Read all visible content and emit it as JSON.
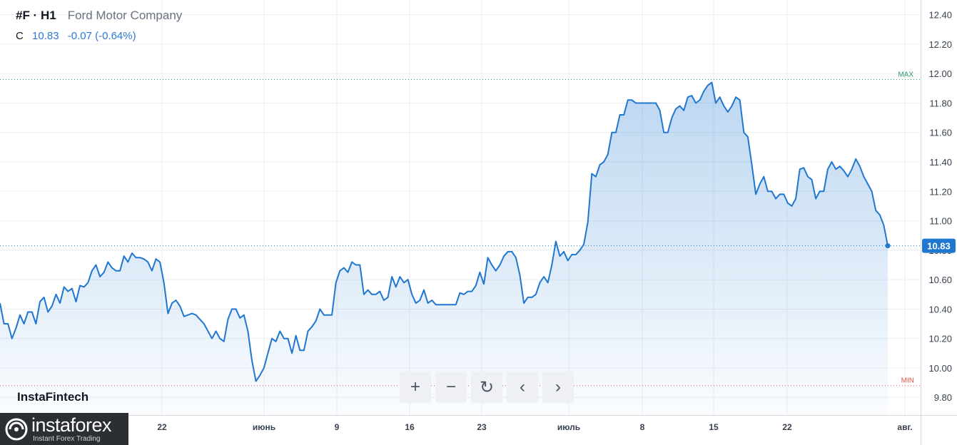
{
  "header": {
    "symbol": "#F · H1",
    "company": "Ford Motor Company",
    "close_label": "C",
    "close_value": "10.83",
    "change": "-0.07 (-0.64%)"
  },
  "controls": {
    "zoom_in": "+",
    "zoom_out": "−",
    "reset": "↻",
    "back": "‹",
    "forward": "›"
  },
  "brand": "InstaFintech",
  "instaforex": {
    "name": "instaforex",
    "tagline": "Instant Forex Trading"
  },
  "colors": {
    "line": "#1f77d0",
    "max": "#26a269",
    "min": "#e5534b",
    "badge": "#1f77d0"
  },
  "chart_data": {
    "type": "area",
    "series": [
      {
        "values": [
          10.44,
          10.3,
          10.3,
          10.2,
          10.27,
          10.36,
          10.3,
          10.38,
          10.38,
          10.3,
          10.45,
          10.48,
          10.38,
          10.42,
          10.5,
          10.44,
          10.55,
          10.52,
          10.54,
          10.45,
          10.56,
          10.55,
          10.58,
          10.66,
          10.7,
          10.62,
          10.65,
          10.72,
          10.68,
          10.66,
          10.66,
          10.76,
          10.72,
          10.78,
          10.75,
          10.75,
          10.74,
          10.72,
          10.66,
          10.74,
          10.72,
          10.58,
          10.37,
          10.44,
          10.46,
          10.42,
          10.35,
          10.36,
          10.37,
          10.36,
          10.33,
          10.3,
          10.25,
          10.2,
          10.25,
          10.2,
          10.18,
          10.33,
          10.4,
          10.4,
          10.34,
          10.36,
          10.25,
          10.05,
          9.91,
          9.95,
          10.0,
          10.1,
          10.2,
          10.18,
          10.25,
          10.2,
          10.2,
          10.1,
          10.22,
          10.12,
          10.12,
          10.25,
          10.28,
          10.32,
          10.4,
          10.36,
          10.36,
          10.36,
          10.58,
          10.66,
          10.68,
          10.65,
          10.72,
          10.7,
          10.7,
          10.5,
          10.53,
          10.5,
          10.5,
          10.52,
          10.46,
          10.48,
          10.62,
          10.55,
          10.62,
          10.58,
          10.6,
          10.5,
          10.44,
          10.46,
          10.53,
          10.44,
          10.46,
          10.43,
          10.43,
          10.43,
          10.43,
          10.43,
          10.43,
          10.51,
          10.5,
          10.52,
          10.52,
          10.56,
          10.65,
          10.57,
          10.75,
          10.7,
          10.66,
          10.7,
          10.76,
          10.79,
          10.79,
          10.75,
          10.63,
          10.44,
          10.48,
          10.48,
          10.5,
          10.58,
          10.62,
          10.58,
          10.7,
          10.86,
          10.76,
          10.79,
          10.73,
          10.77,
          10.77,
          10.8,
          10.84,
          10.99,
          11.32,
          11.3,
          11.38,
          11.4,
          11.45,
          11.6,
          11.6,
          11.72,
          11.72,
          11.82,
          11.82,
          11.8,
          11.8,
          11.8,
          11.8,
          11.8,
          11.8,
          11.75,
          11.6,
          11.6,
          11.7,
          11.76,
          11.78,
          11.75,
          11.84,
          11.85,
          11.8,
          11.82,
          11.88,
          11.92,
          11.94,
          11.8,
          11.84,
          11.78,
          11.74,
          11.78,
          11.84,
          11.82,
          11.6,
          11.57,
          11.38,
          11.18,
          11.25,
          11.3,
          11.2,
          11.2,
          11.15,
          11.18,
          11.18,
          11.12,
          11.1,
          11.15,
          11.35,
          11.36,
          11.3,
          11.28,
          11.15,
          11.2,
          11.2,
          11.35,
          11.4,
          11.35,
          11.37,
          11.34,
          11.3,
          11.35,
          11.42,
          11.37,
          11.3,
          11.25,
          11.2,
          11.07,
          11.04,
          10.97,
          10.83
        ]
      }
    ],
    "x_ticks": [
      "22",
      "июнь",
      "9",
      "16",
      "23",
      "июль",
      "8",
      "15",
      "22",
      "авг."
    ],
    "y_ticks": [
      "9.80",
      "10.00",
      "10.20",
      "10.40",
      "10.60",
      "10.80",
      "11.00",
      "11.20",
      "11.40",
      "11.60",
      "11.80",
      "12.00",
      "12.20",
      "12.40"
    ],
    "ylim": [
      9.68,
      12.5
    ],
    "max_value": 11.96,
    "max_label": "MAX",
    "min_value": 9.88,
    "min_label": "MIN",
    "last_value": 10.83,
    "last_label": "10.83",
    "grid": true
  }
}
